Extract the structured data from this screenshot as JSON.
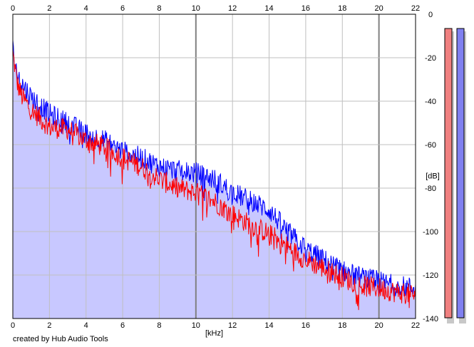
{
  "chart_data": {
    "type": "line",
    "xlabel": "[kHz]",
    "ylabel": "[dB]",
    "xlim": [
      0,
      22
    ],
    "ylim": [
      -140,
      0
    ],
    "x_ticks": [
      0,
      2,
      4,
      6,
      8,
      10,
      12,
      14,
      16,
      18,
      20,
      22
    ],
    "y_ticks": [
      0,
      -20,
      -40,
      -60,
      -80,
      -100,
      -120,
      -140
    ],
    "grid": true,
    "fill_color": "#c8c8ff",
    "credit": "created by Hub Audio Tools",
    "series": [
      {
        "color": "#ff0000",
        "points": [
          [
            0,
            -18
          ],
          [
            0.25,
            -32
          ],
          [
            0.5,
            -38
          ],
          [
            1,
            -44
          ],
          [
            1.5,
            -48
          ],
          [
            2,
            -52
          ],
          [
            3,
            -53
          ],
          [
            4,
            -58
          ],
          [
            5,
            -61
          ],
          [
            6,
            -66
          ],
          [
            7,
            -70
          ],
          [
            8,
            -76
          ],
          [
            9,
            -80
          ],
          [
            10,
            -82
          ],
          [
            11,
            -86
          ],
          [
            12,
            -92
          ],
          [
            13,
            -97
          ],
          [
            14,
            -101
          ],
          [
            15,
            -107
          ],
          [
            16,
            -113
          ],
          [
            17,
            -117
          ],
          [
            18,
            -121
          ],
          [
            19,
            -125
          ],
          [
            20,
            -126
          ],
          [
            21,
            -128
          ],
          [
            22,
            -129
          ]
        ]
      },
      {
        "color": "#0000ff",
        "points": [
          [
            0,
            -16
          ],
          [
            0.25,
            -28
          ],
          [
            0.5,
            -32
          ],
          [
            1,
            -38
          ],
          [
            1.5,
            -42
          ],
          [
            2,
            -46
          ],
          [
            3,
            -50
          ],
          [
            4,
            -55
          ],
          [
            5,
            -58
          ],
          [
            6,
            -63
          ],
          [
            7,
            -66
          ],
          [
            8,
            -70
          ],
          [
            9,
            -72
          ],
          [
            10,
            -73
          ],
          [
            11,
            -76
          ],
          [
            12,
            -82
          ],
          [
            13,
            -86
          ],
          [
            14,
            -90
          ],
          [
            15,
            -100
          ],
          [
            16,
            -108
          ],
          [
            17,
            -113
          ],
          [
            18,
            -118
          ],
          [
            19,
            -121
          ],
          [
            20,
            -123
          ],
          [
            21,
            -125
          ],
          [
            22,
            -126
          ]
        ]
      }
    ]
  },
  "meters": [
    {
      "color": "#f08080",
      "level": 1.0
    },
    {
      "color": "#8080f0",
      "level": 1.0
    }
  ]
}
